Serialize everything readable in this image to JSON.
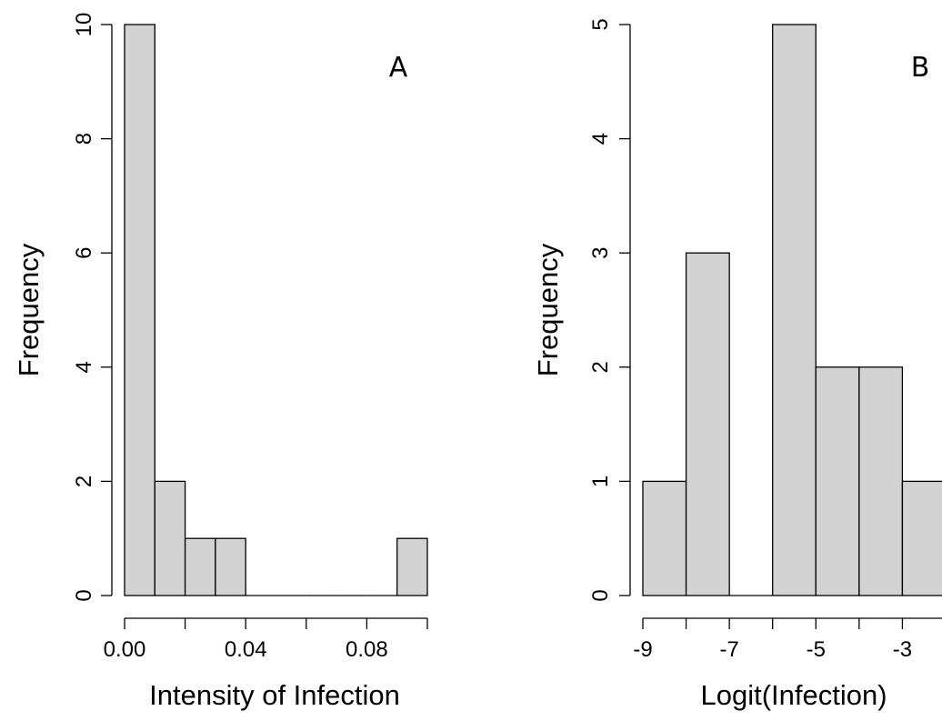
{
  "chart_data": [
    {
      "type": "bar",
      "panel_label": "A",
      "xlabel": "Intensity of Infection",
      "ylabel": "Frequency",
      "bins": [
        [
          0.0,
          0.01
        ],
        [
          0.01,
          0.02
        ],
        [
          0.02,
          0.03
        ],
        [
          0.03,
          0.04
        ],
        [
          0.04,
          0.05
        ],
        [
          0.05,
          0.06
        ],
        [
          0.06,
          0.07
        ],
        [
          0.07,
          0.08
        ],
        [
          0.08,
          0.09
        ],
        [
          0.09,
          0.1
        ]
      ],
      "values": [
        10,
        2,
        1,
        1,
        0,
        0,
        0,
        0,
        0,
        1
      ],
      "xlim": [
        0.0,
        0.1
      ],
      "ylim": [
        0,
        10
      ],
      "x_ticks": [
        0.0,
        0.02,
        0.04,
        0.06,
        0.08,
        0.1
      ],
      "x_tick_labels": [
        "0.00",
        "",
        "0.04",
        "",
        "0.08",
        ""
      ],
      "y_ticks": [
        0,
        2,
        4,
        6,
        8,
        10
      ],
      "y_tick_labels": [
        "0",
        "2",
        "4",
        "6",
        "8",
        "10"
      ],
      "bar_color": "#d3d3d3",
      "grid": false
    },
    {
      "type": "bar",
      "panel_label": "B",
      "xlabel": "Logit(Infection)",
      "ylabel": "Frequency",
      "bins": [
        [
          -9,
          -8
        ],
        [
          -8,
          -7
        ],
        [
          -7,
          -6
        ],
        [
          -6,
          -5
        ],
        [
          -5,
          -4
        ],
        [
          -4,
          -3
        ],
        [
          -3,
          -2
        ]
      ],
      "values": [
        1,
        3,
        0,
        5,
        2,
        2,
        1
      ],
      "xlim": [
        -9,
        -2
      ],
      "ylim": [
        0,
        5
      ],
      "x_ticks": [
        -9,
        -8,
        -7,
        -6,
        -5,
        -4,
        -3,
        -2
      ],
      "x_tick_labels": [
        "-9",
        "",
        "-7",
        "",
        "-5",
        "",
        "-3",
        ""
      ],
      "y_ticks": [
        0,
        1,
        2,
        3,
        4,
        5
      ],
      "y_tick_labels": [
        "0",
        "1",
        "2",
        "3",
        "4",
        "5"
      ],
      "bar_color": "#d3d3d3",
      "grid": false
    }
  ]
}
